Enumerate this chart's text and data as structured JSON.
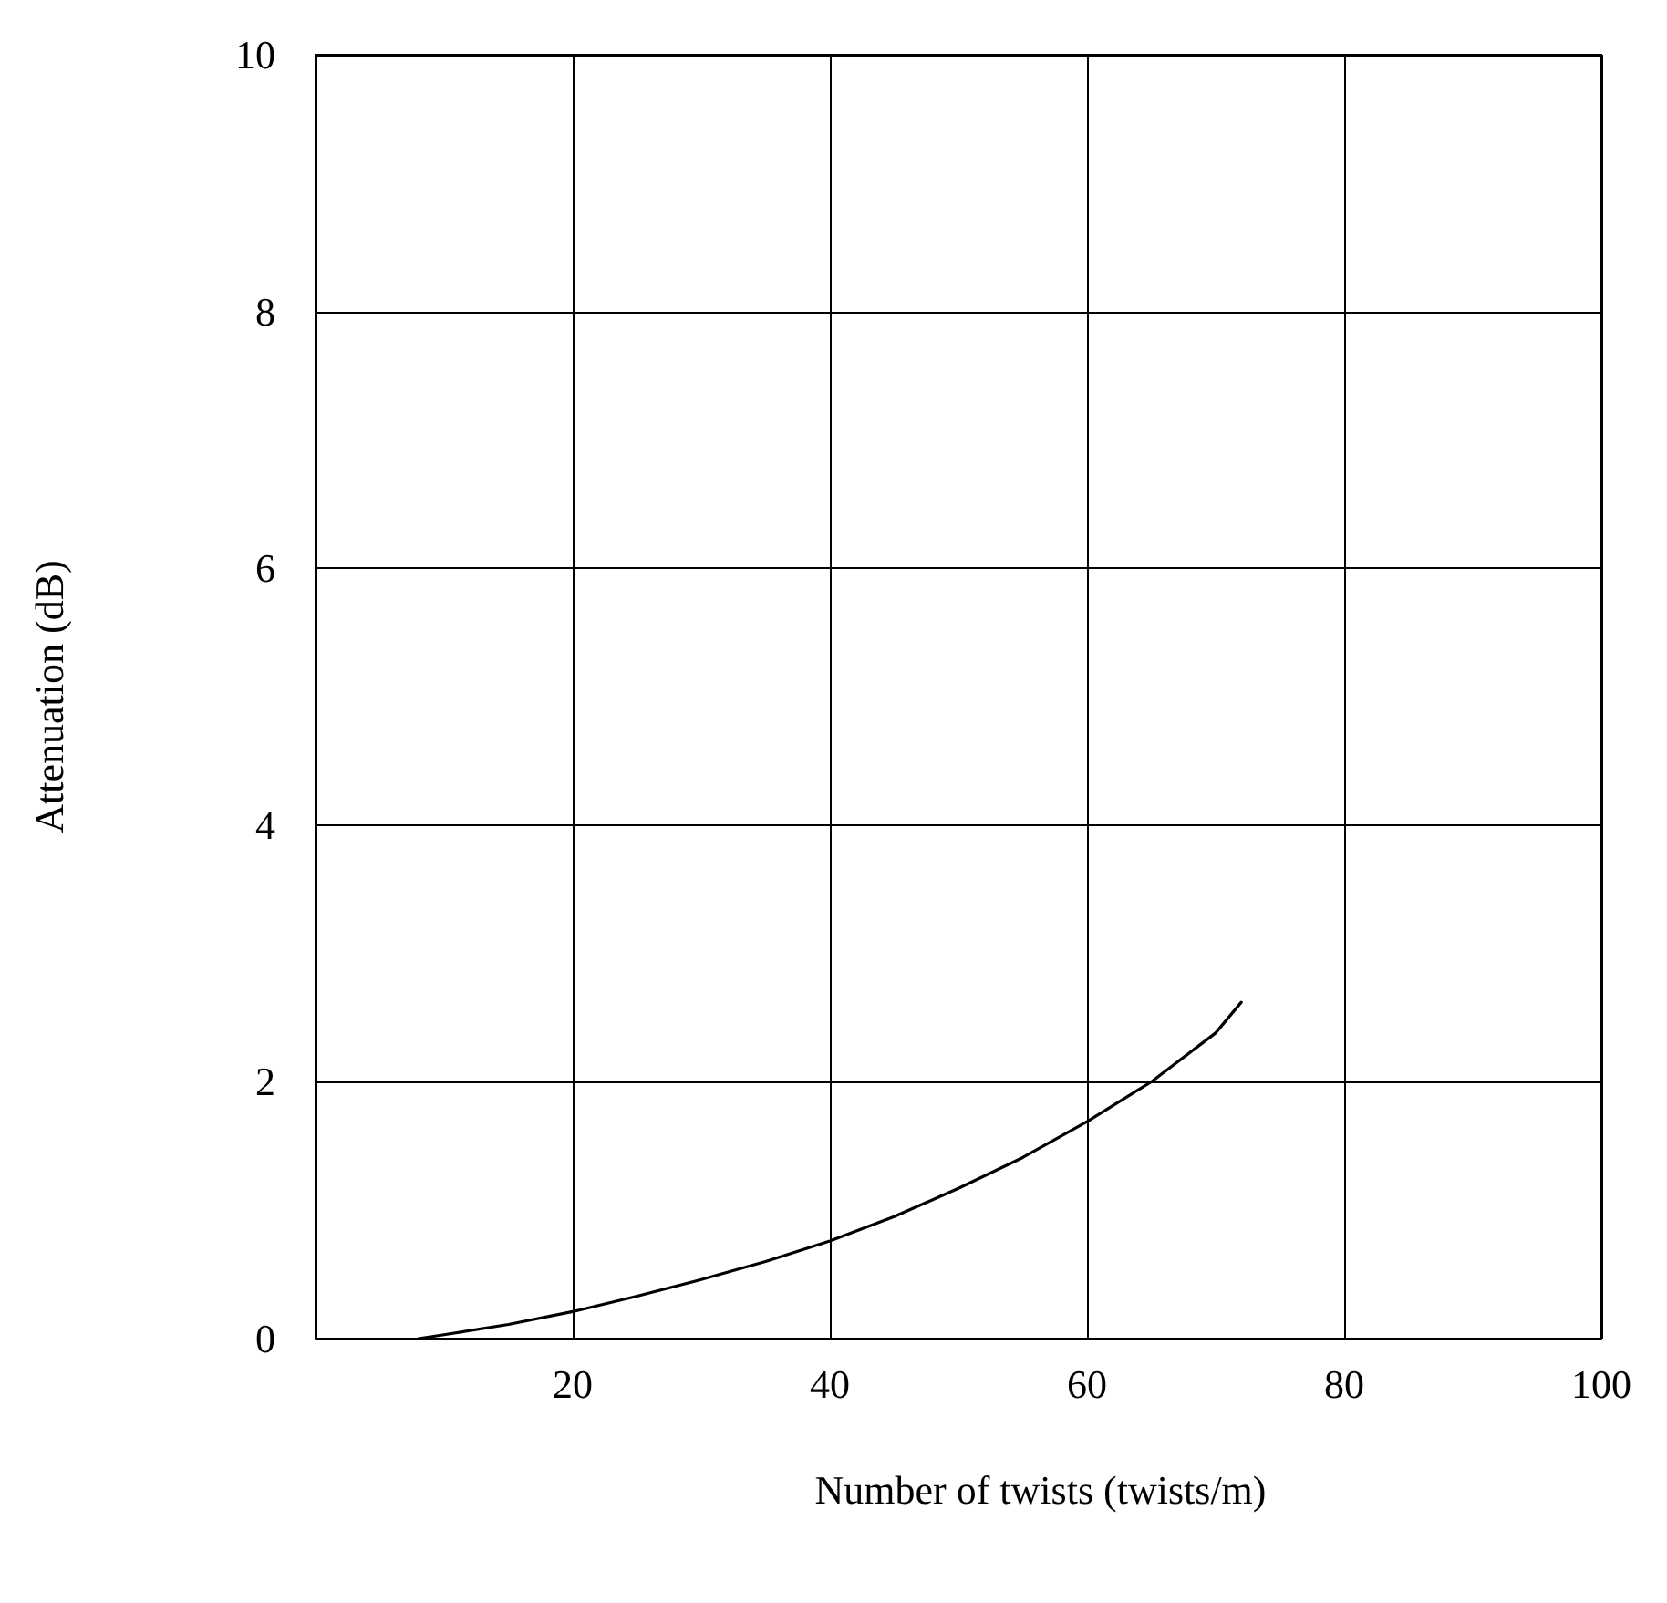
{
  "chart_data": {
    "type": "line",
    "xlabel": "Number of twists (twists/m)",
    "ylabel": "Attenuation (dB)",
    "xlim": [
      0,
      100
    ],
    "xticks": [
      {
        "value": 0,
        "label": null
      },
      20,
      40,
      60,
      80,
      100
    ],
    "ylim": [
      0,
      10
    ],
    "yticks": [
      0,
      2,
      4,
      6,
      8,
      10
    ],
    "grid": true,
    "marker": "none",
    "line_style": "solid",
    "series": [
      {
        "color": "#000000",
        "x": [
          8,
          10,
          15,
          20,
          25,
          30,
          35,
          40,
          45,
          50,
          55,
          60,
          65,
          70,
          72
        ],
        "values": [
          0,
          0.03,
          0.11,
          0.21,
          0.33,
          0.46,
          0.6,
          0.76,
          0.95,
          1.17,
          1.41,
          1.69,
          2.0,
          2.38,
          2.62
        ]
      }
    ]
  }
}
